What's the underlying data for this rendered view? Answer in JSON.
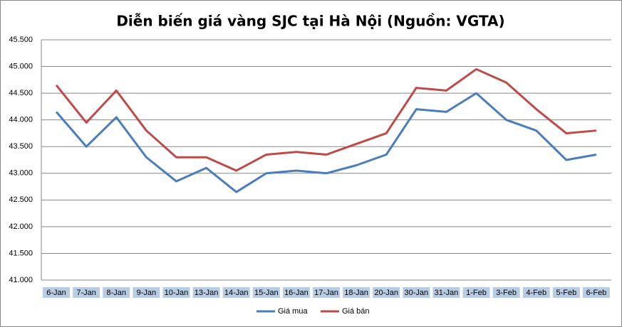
{
  "chart_data": {
    "type": "line",
    "title": "Diễn biến giá vàng SJC tại Hà Nội (Nguồn: VGTA)",
    "categories": [
      "6-Jan",
      "7-Jan",
      "8-Jan",
      "9-Jan",
      "10-Jan",
      "13-Jan",
      "14-Jan",
      "15-Jan",
      "16-Jan",
      "17-Jan",
      "18-Jan",
      "20-Jan",
      "30-Jan",
      "31-Jan",
      "1-Feb",
      "3-Feb",
      "4-Feb",
      "5-Feb",
      "6-Feb"
    ],
    "series": [
      {
        "name": "Giá mua",
        "color": "#4a7ebb",
        "values": [
          44150,
          43500,
          44050,
          43300,
          42850,
          43100,
          42650,
          43000,
          43050,
          43000,
          43150,
          43350,
          44200,
          44150,
          44500,
          44000,
          43800,
          43250,
          43350
        ]
      },
      {
        "name": "Giá bán",
        "color": "#be4b48",
        "values": [
          44650,
          43950,
          44550,
          43800,
          43300,
          43300,
          43050,
          43350,
          43400,
          43350,
          43550,
          43750,
          44600,
          44550,
          44950,
          44700,
          44200,
          43750,
          43800
        ]
      }
    ],
    "ylim": [
      41000,
      45500
    ],
    "yticks": [
      {
        "value": 41000,
        "label": "41.000"
      },
      {
        "value": 41500,
        "label": "41.500"
      },
      {
        "value": 42000,
        "label": "42.000"
      },
      {
        "value": 42500,
        "label": "42.500"
      },
      {
        "value": 43000,
        "label": "43.000"
      },
      {
        "value": 43500,
        "label": "43.500"
      },
      {
        "value": 44000,
        "label": "44.000"
      },
      {
        "value": 44500,
        "label": "44.500"
      },
      {
        "value": 45000,
        "label": "45.000"
      },
      {
        "value": 45500,
        "label": "45.500"
      }
    ],
    "grid": true,
    "legend": "bottom"
  }
}
